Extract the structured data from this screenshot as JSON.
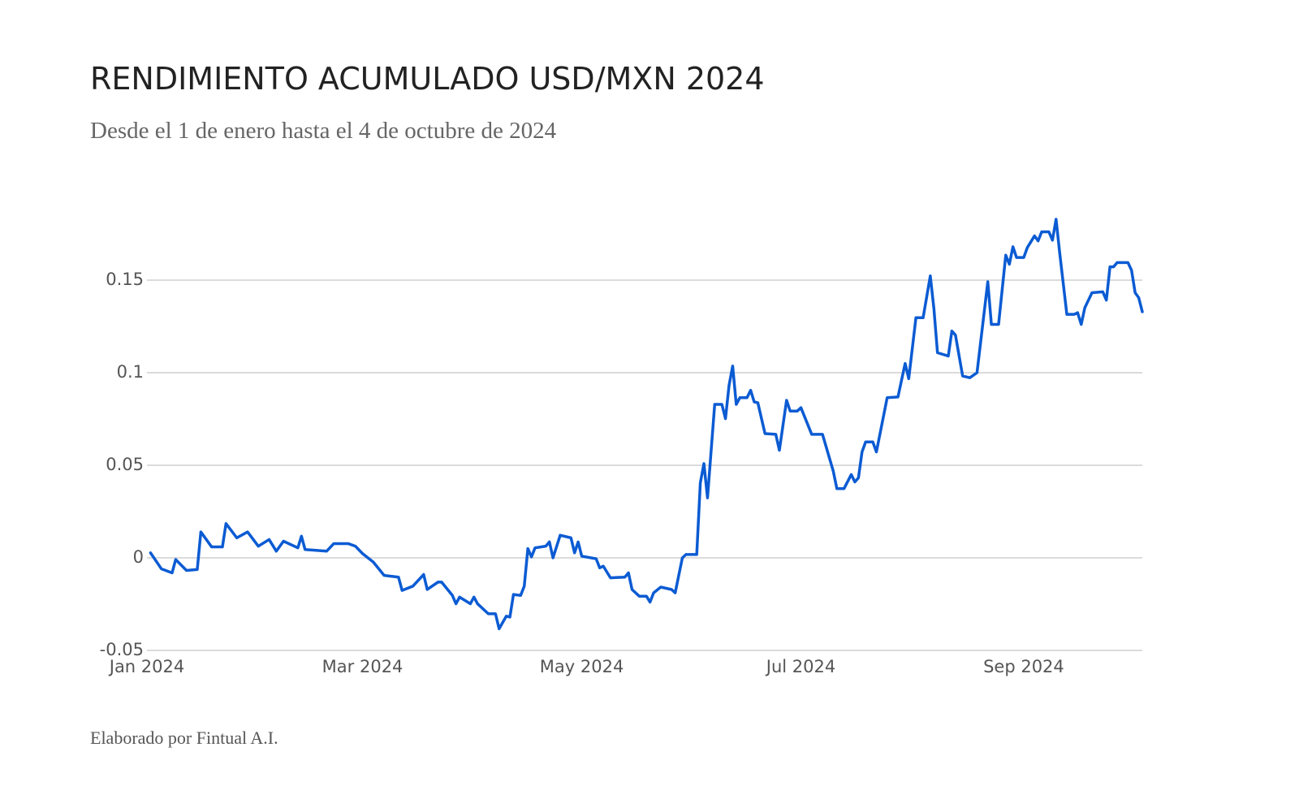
{
  "chart_data": {
    "type": "line",
    "title": "RENDIMIENTO ACUMULADO USD/MXN 2024",
    "subtitle": "Desde el 1 de enero hasta el 4 de octubre de 2024",
    "footer": "Elaborado por Fintual A.I.",
    "color": "#0b5bd3",
    "grid": true,
    "xlim": [
      "2024-01-01",
      "2024-10-04"
    ],
    "xticks": [
      {
        "value": "2024-01-01",
        "label": "Jan 2024"
      },
      {
        "value": "2024-03-01",
        "label": "Mar 2024"
      },
      {
        "value": "2024-05-01",
        "label": "May 2024"
      },
      {
        "value": "2024-07-01",
        "label": "Jul 2024"
      },
      {
        "value": "2024-09-01",
        "label": "Sep 2024"
      }
    ],
    "ylim": [
      -0.05,
      0.2
    ],
    "yticks": [
      -0.05,
      0,
      0.05,
      0.1,
      0.15
    ],
    "x": [
      "2024-01-02",
      "2024-01-05",
      "2024-01-08",
      "2024-01-09",
      "2024-01-12",
      "2024-01-15",
      "2024-01-16",
      "2024-01-19",
      "2024-01-22",
      "2024-01-23",
      "2024-01-26",
      "2024-01-29",
      "2024-02-01",
      "2024-02-04",
      "2024-02-06",
      "2024-02-08",
      "2024-02-12",
      "2024-02-13",
      "2024-02-14",
      "2024-02-20",
      "2024-02-22",
      "2024-02-26",
      "2024-02-28",
      "2024-03-01",
      "2024-03-04",
      "2024-03-07",
      "2024-03-11",
      "2024-03-12",
      "2024-03-15",
      "2024-03-18",
      "2024-03-19",
      "2024-03-22",
      "2024-03-23",
      "2024-03-26",
      "2024-03-27",
      "2024-03-28",
      "2024-03-31",
      "2024-04-01",
      "2024-04-02",
      "2024-04-05",
      "2024-04-07",
      "2024-04-08",
      "2024-04-10",
      "2024-04-11",
      "2024-04-12",
      "2024-04-14",
      "2024-04-15",
      "2024-04-16",
      "2024-04-17",
      "2024-04-18",
      "2024-04-21",
      "2024-04-22",
      "2024-04-23",
      "2024-04-25",
      "2024-04-28",
      "2024-04-29",
      "2024-04-30",
      "2024-05-01",
      "2024-05-05",
      "2024-05-06",
      "2024-05-07",
      "2024-05-09",
      "2024-05-13",
      "2024-05-14",
      "2024-05-15",
      "2024-05-17",
      "2024-05-19",
      "2024-05-20",
      "2024-05-21",
      "2024-05-23",
      "2024-05-26",
      "2024-05-27",
      "2024-05-29",
      "2024-05-30",
      "2024-06-02",
      "2024-06-03",
      "2024-06-04",
      "2024-06-05",
      "2024-06-07",
      "2024-06-09",
      "2024-06-10",
      "2024-06-11",
      "2024-06-12",
      "2024-06-13",
      "2024-06-14",
      "2024-06-16",
      "2024-06-17",
      "2024-06-18",
      "2024-06-19",
      "2024-06-21",
      "2024-06-24",
      "2024-06-25",
      "2024-06-27",
      "2024-06-28",
      "2024-06-30",
      "2024-07-01",
      "2024-07-04",
      "2024-07-07",
      "2024-07-10",
      "2024-07-11",
      "2024-07-13",
      "2024-07-15",
      "2024-07-16",
      "2024-07-17",
      "2024-07-18",
      "2024-07-19",
      "2024-07-21",
      "2024-07-22",
      "2024-07-25",
      "2024-07-28",
      "2024-07-30",
      "2024-07-31",
      "2024-08-02",
      "2024-08-04",
      "2024-08-06",
      "2024-08-07",
      "2024-08-08",
      "2024-08-11",
      "2024-08-12",
      "2024-08-13",
      "2024-08-15",
      "2024-08-17",
      "2024-08-19",
      "2024-08-22",
      "2024-08-23",
      "2024-08-25",
      "2024-08-27",
      "2024-08-28",
      "2024-08-29",
      "2024-08-30",
      "2024-09-01",
      "2024-09-02",
      "2024-09-04",
      "2024-09-05",
      "2024-09-06",
      "2024-09-08",
      "2024-09-09",
      "2024-09-10",
      "2024-09-11",
      "2024-09-13",
      "2024-09-15",
      "2024-09-16",
      "2024-09-17",
      "2024-09-18",
      "2024-09-20",
      "2024-09-23",
      "2024-09-24",
      "2024-09-25",
      "2024-09-26",
      "2024-09-27",
      "2024-09-30",
      "2024-10-01",
      "2024-10-02",
      "2024-10-03",
      "2024-10-04"
    ],
    "values": [
      0.0027,
      -0.0059,
      -0.0081,
      -0.0009,
      -0.0068,
      -0.0063,
      0.014,
      0.0059,
      0.0059,
      0.0185,
      0.0108,
      0.014,
      0.0063,
      0.0099,
      0.0036,
      0.009,
      0.0054,
      0.0117,
      0.0045,
      0.0036,
      0.0077,
      0.0077,
      0.0063,
      0.0023,
      -0.0023,
      -0.0095,
      -0.0104,
      -0.0176,
      -0.0153,
      -0.009,
      -0.0171,
      -0.0131,
      -0.0131,
      -0.0203,
      -0.0248,
      -0.0212,
      -0.0248,
      -0.0212,
      -0.0248,
      -0.0302,
      -0.0302,
      -0.0383,
      -0.0315,
      -0.032,
      -0.0198,
      -0.0203,
      -0.0153,
      0.005,
      0.0005,
      0.0054,
      0.0063,
      0.0086,
      0,
      0.0122,
      0.0108,
      0.0027,
      0.0086,
      0.0009,
      -0.0005,
      -0.0054,
      -0.0045,
      -0.0108,
      -0.0104,
      -0.0081,
      -0.0171,
      -0.0207,
      -0.0207,
      -0.0239,
      -0.0189,
      -0.0158,
      -0.0171,
      -0.0189,
      0,
      0.0018,
      0.0018,
      0.0405,
      0.0509,
      0.0324,
      0.0829,
      0.0829,
      0.0752,
      0.0932,
      0.1036,
      0.0829,
      0.0865,
      0.0865,
      0.0905,
      0.0842,
      0.0838,
      0.0671,
      0.0667,
      0.0581,
      0.0851,
      0.0793,
      0.0793,
      0.0811,
      0.0667,
      0.0667,
      0.0468,
      0.0374,
      0.0374,
      0.045,
      0.041,
      0.0432,
      0.0572,
      0.0626,
      0.0626,
      0.0572,
      0.0865,
      0.0869,
      0.105,
      0.0968,
      0.1297,
      0.1297,
      0.1523,
      0.1347,
      0.1108,
      0.109,
      0.1225,
      0.1203,
      0.0982,
      0.0973,
      0.1,
      0.1491,
      0.1261,
      0.1261,
      0.1635,
      0.1586,
      0.168,
      0.1622,
      0.1622,
      0.1676,
      0.1739,
      0.1712,
      0.1761,
      0.1761,
      0.1716,
      0.1829,
      0.1649,
      0.1315,
      0.1315,
      0.1324,
      0.1261,
      0.1351,
      0.1432,
      0.1437,
      0.1392,
      0.1572,
      0.1572,
      0.1595,
      0.1595,
      0.1554,
      0.1432,
      0.1405,
      0.1329
    ]
  }
}
